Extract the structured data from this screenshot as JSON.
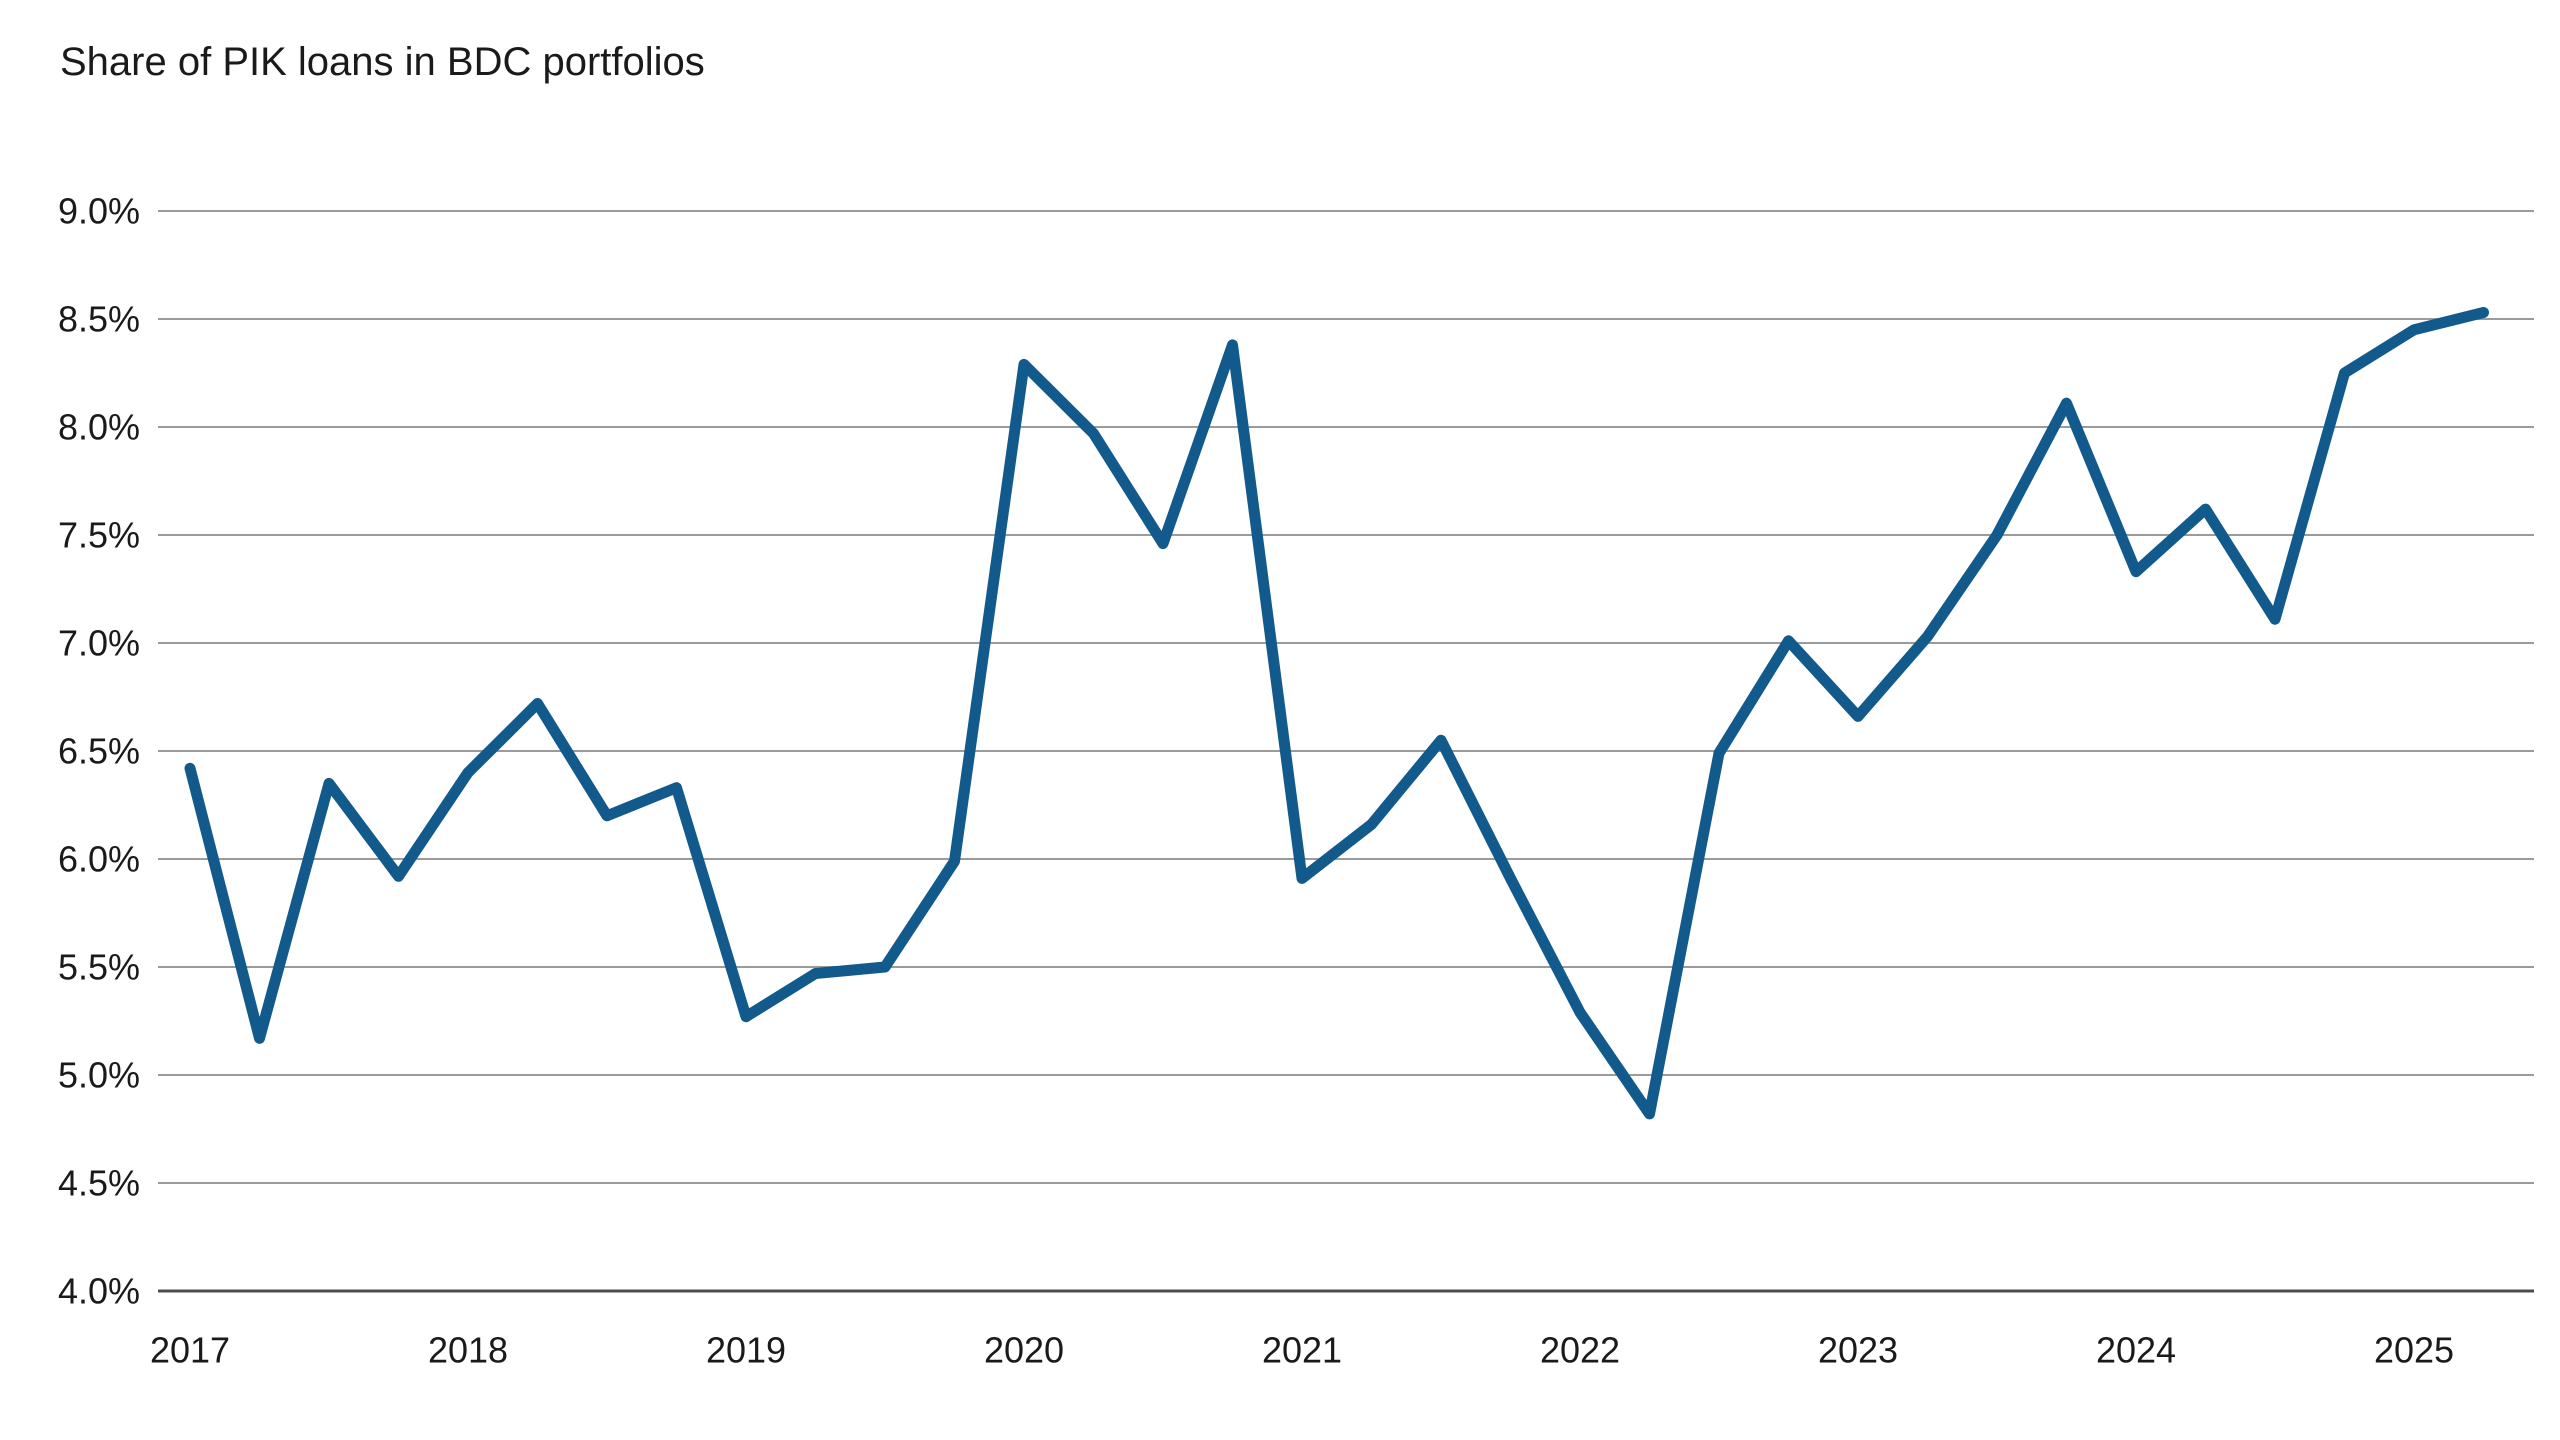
{
  "title": "Share of PIK loans in BDC portfolios",
  "colors": {
    "line": "#135a8c",
    "grid": "#9b9b9b",
    "axis_line": "#4d4d4d",
    "text": "#1a1a1a",
    "background": "#ffffff"
  },
  "y_axis": {
    "labels": [
      "9.0%",
      "8.5%",
      "8.0%",
      "7.5%",
      "7.0%",
      "6.5%",
      "6.0%",
      "5.5%",
      "5.0%",
      "4.5%",
      "4.0%"
    ]
  },
  "x_axis": {
    "labels": [
      "2017",
      "2018",
      "2019",
      "2020",
      "2021",
      "2022",
      "2023",
      "2024",
      "2025"
    ]
  },
  "chart_data": {
    "type": "line",
    "title": "Share of PIK loans in BDC portfolios",
    "series_name": "Share of PIK loans in BDC portfolios",
    "unit": "%",
    "x": [
      "2017 Q1",
      "2017 Q2",
      "2017 Q3",
      "2017 Q4",
      "2018 Q1",
      "2018 Q2",
      "2018 Q3",
      "2018 Q4",
      "2019 Q1",
      "2019 Q2",
      "2019 Q3",
      "2019 Q4",
      "2020 Q1",
      "2020 Q2",
      "2020 Q3",
      "2020 Q4",
      "2021 Q1",
      "2021 Q2",
      "2021 Q3",
      "2021 Q4",
      "2022 Q1",
      "2022 Q2",
      "2022 Q3",
      "2022 Q4",
      "2023 Q1",
      "2023 Q2",
      "2023 Q3",
      "2023 Q4",
      "2024 Q1",
      "2024 Q2",
      "2024 Q3",
      "2024 Q4",
      "2025 Q1",
      "2025 Q2"
    ],
    "values": [
      6.42,
      5.17,
      6.35,
      5.92,
      6.4,
      6.72,
      6.2,
      6.33,
      5.27,
      5.47,
      5.5,
      5.99,
      8.29,
      7.97,
      7.46,
      8.38,
      5.91,
      6.16,
      6.55,
      5.91,
      5.29,
      4.82,
      6.49,
      7.01,
      6.66,
      7.03,
      7.5,
      8.11,
      7.33,
      7.62,
      7.11,
      8.25,
      8.45,
      8.53
    ],
    "xlabel": "",
    "ylabel": "",
    "ylim": [
      4.0,
      9.0
    ],
    "ytick_step": 0.5,
    "xtick_labels": [
      "2017",
      "2018",
      "2019",
      "2020",
      "2021",
      "2022",
      "2023",
      "2024",
      "2025"
    ],
    "grid": "horizontal",
    "legend": "none"
  }
}
